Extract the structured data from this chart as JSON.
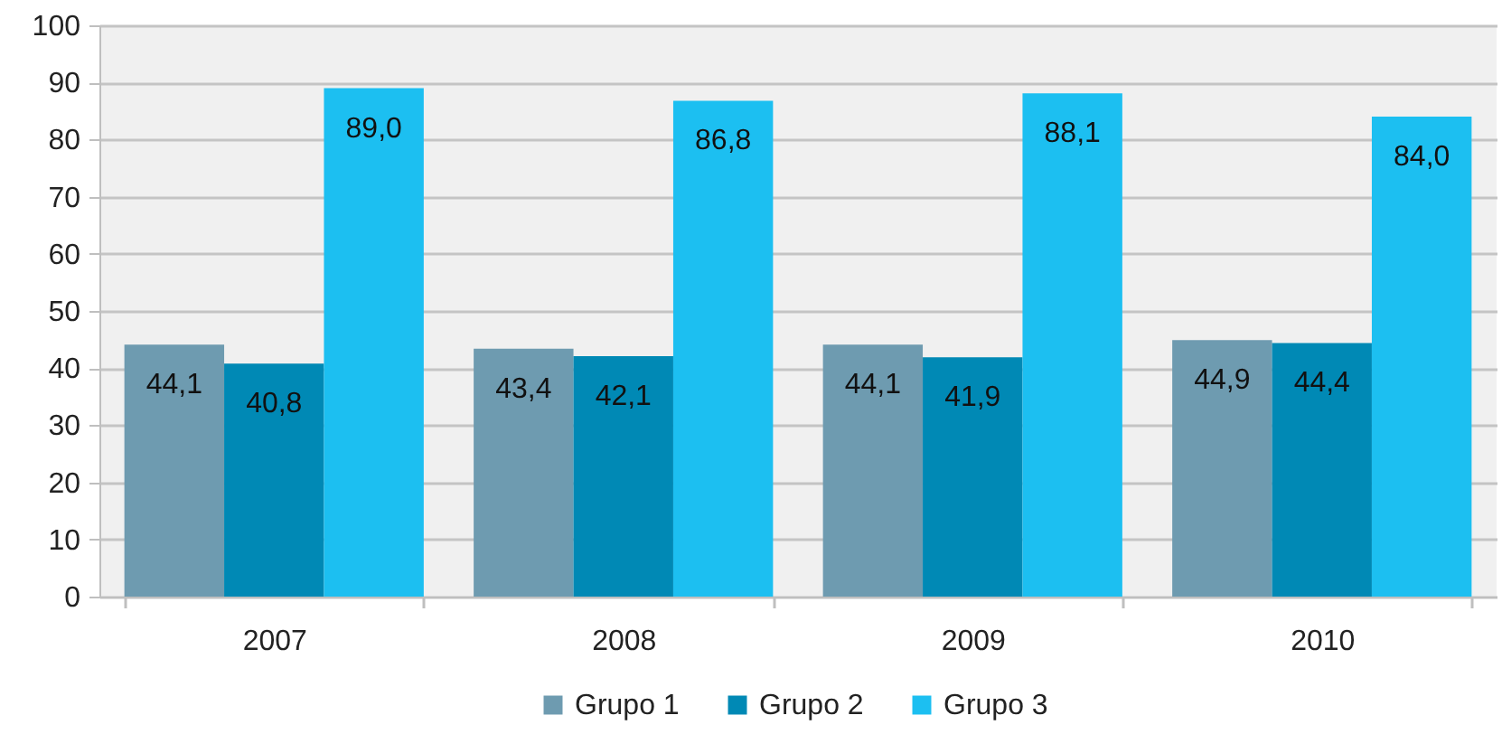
{
  "chart_data": {
    "type": "bar",
    "categories": [
      "2007",
      "2008",
      "2009",
      "2010"
    ],
    "series": [
      {
        "name": "Grupo 1",
        "color": "#6e9bb0",
        "values": [
          44.1,
          43.4,
          44.1,
          44.9
        ],
        "value_labels": [
          "44,1",
          "43,4",
          "44,1",
          "44,9"
        ]
      },
      {
        "name": "Grupo 2",
        "color": "#0089b5",
        "values": [
          40.8,
          42.1,
          41.9,
          44.4
        ],
        "value_labels": [
          "40,8",
          "42,1",
          "41,9",
          "44,4"
        ]
      },
      {
        "name": "Grupo 3",
        "color": "#1cbff1",
        "values": [
          89.0,
          86.8,
          88.1,
          84.0
        ],
        "value_labels": [
          "89,0",
          "86,8",
          "88,1",
          "84,0"
        ]
      }
    ],
    "ylim": [
      0,
      100
    ],
    "yticks": [
      0,
      10,
      20,
      30,
      40,
      50,
      60,
      70,
      80,
      90,
      100
    ],
    "grid": "y",
    "legend": "bottom"
  }
}
